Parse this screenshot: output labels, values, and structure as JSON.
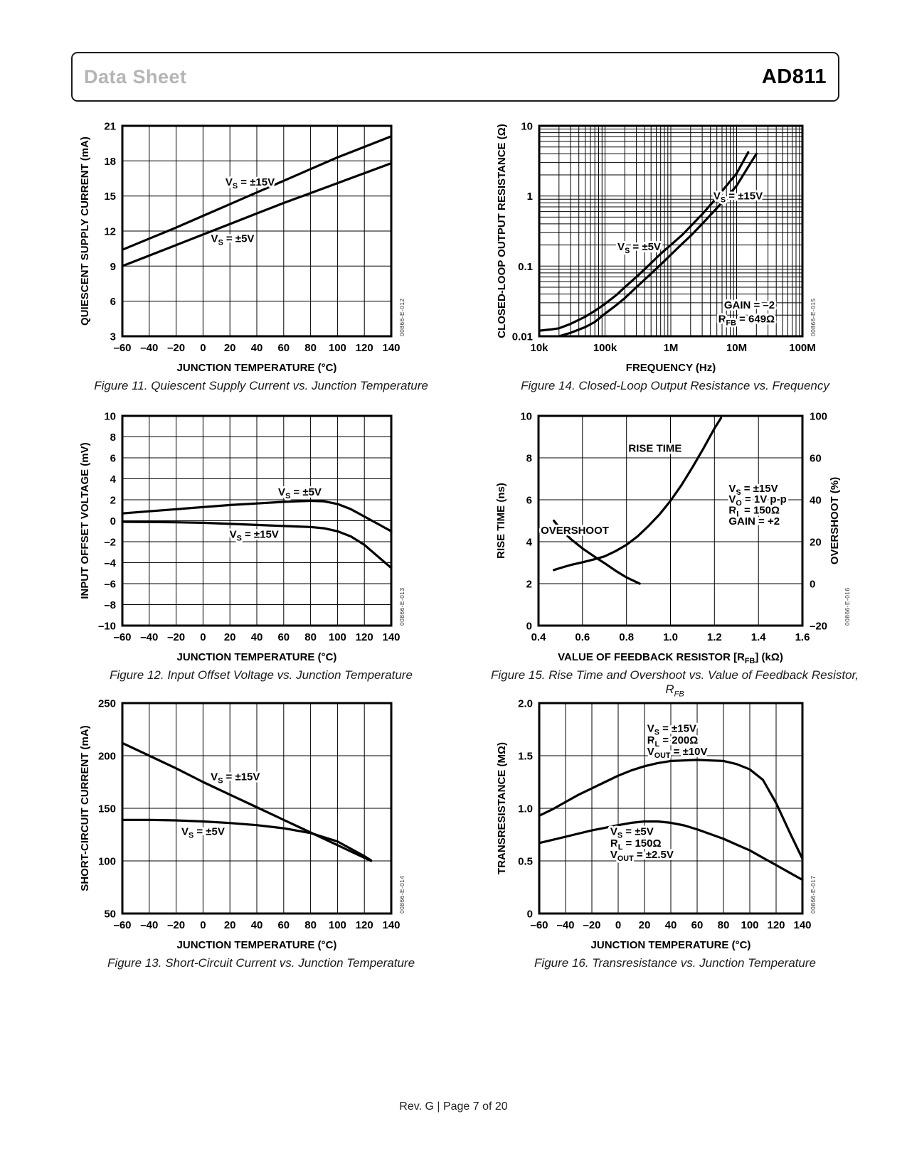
{
  "header": {
    "doc_type": "Data Sheet",
    "part_number": "AD811"
  },
  "footer": {
    "text": "Rev. G | Page 7 of 20"
  },
  "chart_data": [
    {
      "id": "figure-11",
      "type": "line",
      "caption": "Figure 11. Quiescent Supply Current vs. Junction Temperature",
      "code": "00866-E-012",
      "xlabel": "JUNCTION TEMPERATURE (°C)",
      "ylabel": "QUIESCENT SUPPLY CURRENT (mA)",
      "xscale": "linear",
      "yscale": "linear",
      "xlim": [
        -60,
        140
      ],
      "ylim": [
        3,
        21
      ],
      "xticks": [
        -60,
        -40,
        -20,
        0,
        20,
        40,
        60,
        80,
        100,
        120,
        140
      ],
      "xtick_labels": [
        "–60",
        "–40",
        "–20",
        "0",
        "20",
        "40",
        "60",
        "80",
        "100",
        "120",
        "140"
      ],
      "yticks": [
        3,
        6,
        9,
        12,
        15,
        18,
        21
      ],
      "ytick_labels": [
        "3",
        "6",
        "9",
        "12",
        "15",
        "18",
        "21"
      ],
      "series": [
        {
          "name": "VS = ±15V",
          "x": [
            -60,
            -40,
            -20,
            0,
            20,
            40,
            60,
            80,
            100,
            120,
            140
          ],
          "y": [
            10.4,
            11.35,
            12.3,
            13.3,
            14.3,
            15.3,
            16.3,
            17.3,
            18.3,
            19.2,
            20.1
          ]
        },
        {
          "name": "VS = ±5V",
          "x": [
            -60,
            -40,
            -20,
            0,
            20,
            40,
            60,
            80,
            100,
            120,
            140
          ],
          "y": [
            9.0,
            9.9,
            10.8,
            11.7,
            12.6,
            13.5,
            14.4,
            15.25,
            16.1,
            16.95,
            17.8
          ]
        }
      ],
      "annotations": [
        {
          "text": "V~S~ = ±15V",
          "x": 35,
          "y": 16.2,
          "anchor": "middle"
        },
        {
          "text": "V~S~ = ±5V",
          "x": 22,
          "y": 11.35,
          "anchor": "middle"
        }
      ]
    },
    {
      "id": "figure-14",
      "type": "line",
      "caption": "Figure 14. Closed-Loop Output Resistance vs. Frequency",
      "code": "00866-E-015",
      "xlabel": "FREQUENCY (Hz)",
      "ylabel": "CLOSED-LOOP OUTPUT RESISTANCE (Ω)",
      "xscale": "log",
      "yscale": "log",
      "xlim": [
        10000,
        100000000
      ],
      "ylim": [
        0.01,
        10
      ],
      "xticks": [
        10000,
        100000,
        1000000,
        10000000,
        100000000
      ],
      "xtick_labels": [
        "10k",
        "100k",
        "1M",
        "10M",
        "100M"
      ],
      "yticks": [
        0.01,
        0.1,
        1,
        10
      ],
      "ytick_labels": [
        "0.01",
        "0.1",
        "1",
        "10"
      ],
      "series": [
        {
          "name": "VS = ±5V",
          "x": [
            10000,
            15000,
            20000,
            30000,
            50000,
            70000,
            100000,
            150000,
            200000,
            300000,
            500000,
            700000,
            1000000,
            1500000,
            2000000,
            3000000,
            5000000,
            7000000,
            10000000,
            15000000
          ],
          "y": [
            0.012,
            0.0125,
            0.013,
            0.015,
            0.019,
            0.023,
            0.029,
            0.039,
            0.05,
            0.07,
            0.11,
            0.15,
            0.2,
            0.28,
            0.37,
            0.55,
            0.95,
            1.4,
            2.1,
            4.2
          ]
        },
        {
          "name": "VS = ±15V",
          "x": [
            20000,
            30000,
            50000,
            70000,
            100000,
            150000,
            200000,
            300000,
            500000,
            700000,
            1000000,
            1500000,
            2000000,
            3000000,
            5000000,
            7000000,
            10000000,
            15000000,
            20000000
          ],
          "y": [
            0.01,
            0.0112,
            0.0135,
            0.016,
            0.021,
            0.028,
            0.035,
            0.05,
            0.078,
            0.105,
            0.145,
            0.21,
            0.27,
            0.4,
            0.67,
            0.95,
            1.4,
            2.6,
            4.0
          ]
        }
      ],
      "annotations": [
        {
          "text": "V~S~ = ±15V",
          "x": 10500000,
          "y": 1.0,
          "anchor": "middle"
        },
        {
          "text": "V~S~ = ±5V",
          "x": 330000,
          "y": 0.19,
          "anchor": "middle"
        },
        {
          "text": "GAIN = –2",
          "x": 38000000,
          "y": 0.028,
          "anchor": "end"
        },
        {
          "text": "R~FB~ = 649Ω",
          "x": 38000000,
          "y": 0.0178,
          "anchor": "end"
        }
      ]
    },
    {
      "id": "figure-12",
      "type": "line",
      "caption": "Figure 12. Input Offset Voltage vs. Junction Temperature",
      "code": "00866-E-013",
      "xlabel": "JUNCTION TEMPERATURE (°C)",
      "ylabel": "INPUT OFFSET VOLTAGE (mV)",
      "xscale": "linear",
      "yscale": "linear",
      "xlim": [
        -60,
        140
      ],
      "ylim": [
        -10,
        10
      ],
      "xticks": [
        -60,
        -40,
        -20,
        0,
        20,
        40,
        60,
        80,
        100,
        120,
        140
      ],
      "xtick_labels": [
        "–60",
        "–40",
        "–20",
        "0",
        "20",
        "40",
        "60",
        "80",
        "100",
        "120",
        "140"
      ],
      "yticks": [
        -10,
        -8,
        -6,
        -4,
        -2,
        0,
        2,
        4,
        6,
        8,
        10
      ],
      "ytick_labels": [
        "–10",
        "–8",
        "–6",
        "–4",
        "–2",
        "0",
        "2",
        "4",
        "6",
        "8",
        "10"
      ],
      "series": [
        {
          "name": "VS = ±5V",
          "x": [
            -60,
            -40,
            -20,
            0,
            20,
            40,
            60,
            70,
            80,
            90,
            100,
            110,
            120,
            130,
            140
          ],
          "y": [
            0.7,
            0.9,
            1.1,
            1.3,
            1.5,
            1.65,
            1.8,
            1.85,
            1.9,
            1.85,
            1.6,
            1.1,
            0.4,
            -0.3,
            -1.0
          ]
        },
        {
          "name": "VS = ±15V",
          "x": [
            -60,
            -40,
            -20,
            0,
            20,
            40,
            60,
            70,
            80,
            90,
            100,
            110,
            120,
            130,
            140
          ],
          "y": [
            -0.1,
            -0.12,
            -0.15,
            -0.2,
            -0.3,
            -0.4,
            -0.5,
            -0.55,
            -0.6,
            -0.72,
            -1.0,
            -1.5,
            -2.3,
            -3.4,
            -4.5
          ]
        }
      ],
      "annotations": [
        {
          "text": "V~S~ = ±5V",
          "x": 72,
          "y": 2.75,
          "anchor": "middle"
        },
        {
          "text": "V~S~ = ±15V",
          "x": 38,
          "y": -1.3,
          "anchor": "middle"
        }
      ]
    },
    {
      "id": "figure-15",
      "type": "line",
      "caption": "Figure 15. Rise Time and Overshoot vs. Value of Feedback Resistor, R~FB~",
      "code": "00866-E-016",
      "xlabel": "VALUE OF FEEDBACK RESISTOR [R~FB~] (kΩ)",
      "ylabel": "RISE TIME (ns)",
      "y2label": "OVERSHOOT (%)",
      "xscale": "linear",
      "yscale": "linear",
      "xlim": [
        0.4,
        1.6
      ],
      "ylim": [
        0,
        10
      ],
      "xticks": [
        0.4,
        0.6,
        0.8,
        1.0,
        1.2,
        1.4,
        1.6
      ],
      "xtick_labels": [
        "0.4",
        "0.6",
        "0.8",
        "1.0",
        "1.2",
        "1.4",
        "1.6"
      ],
      "yticks": [
        0,
        2,
        4,
        6,
        8,
        10
      ],
      "ytick_labels": [
        "0",
        "2",
        "4",
        "6",
        "8",
        "10"
      ],
      "y2tick_labels": [
        "–20",
        "0",
        "20",
        "40",
        "60",
        "100"
      ],
      "series": [
        {
          "name": "RISE TIME",
          "x": [
            0.47,
            0.5,
            0.55,
            0.6,
            0.65,
            0.7,
            0.75,
            0.8,
            0.85,
            0.9,
            0.95,
            1.0,
            1.05,
            1.1,
            1.15,
            1.2,
            1.23
          ],
          "y": [
            2.65,
            2.75,
            2.9,
            3.02,
            3.15,
            3.3,
            3.55,
            3.85,
            4.25,
            4.75,
            5.3,
            5.95,
            6.7,
            7.55,
            8.45,
            9.4,
            9.9
          ]
        },
        {
          "name": "OVERSHOOT",
          "x": [
            0.47,
            0.5,
            0.55,
            0.6,
            0.65,
            0.7,
            0.75,
            0.8,
            0.86
          ],
          "y": [
            5.0,
            4.6,
            4.1,
            3.68,
            3.32,
            2.98,
            2.62,
            2.3,
            2.0
          ],
          "y_overshoot_percent": [
            30,
            26,
            21,
            16.8,
            13.2,
            9.8,
            6.2,
            3,
            0
          ]
        }
      ],
      "annotations": [
        {
          "text": "RISE TIME",
          "x": 0.93,
          "y": 8.45,
          "anchor": "middle"
        },
        {
          "text": "OVERSHOOT",
          "x": 0.565,
          "y": 4.55,
          "anchor": "middle"
        },
        {
          "text": "V~S~ = ±15V",
          "x": 1.265,
          "y": 6.55,
          "anchor": "start"
        },
        {
          "text": "V~O~ = 1V p-p",
          "x": 1.265,
          "y": 6.03,
          "anchor": "start"
        },
        {
          "text": "R~L~ = 150Ω",
          "x": 1.265,
          "y": 5.51,
          "anchor": "start"
        },
        {
          "text": "GAIN = +2",
          "x": 1.265,
          "y": 4.99,
          "anchor": "start"
        }
      ]
    },
    {
      "id": "figure-13",
      "type": "line",
      "caption": "Figure 13. Short-Circuit Current vs. Junction Temperature",
      "code": "00866-E-014",
      "xlabel": "JUNCTION TEMPERATURE (°C)",
      "ylabel": "SHORT-CIRCUIT CURRENT (mA)",
      "xscale": "linear",
      "yscale": "linear",
      "xlim": [
        -60,
        140
      ],
      "ylim": [
        50,
        250
      ],
      "xticks": [
        -60,
        -40,
        -20,
        0,
        20,
        40,
        60,
        80,
        100,
        120,
        140
      ],
      "xtick_labels": [
        "–60",
        "–40",
        "–20",
        "0",
        "20",
        "40",
        "60",
        "80",
        "100",
        "120",
        "140"
      ],
      "yticks": [
        50,
        100,
        150,
        200,
        250
      ],
      "ytick_labels": [
        "50",
        "100",
        "150",
        "200",
        "250"
      ],
      "series": [
        {
          "name": "VS = ±15V",
          "x": [
            -60,
            -40,
            -20,
            0,
            20,
            40,
            60,
            80,
            100,
            120,
            125
          ],
          "y": [
            212,
            200,
            188,
            175,
            163,
            151,
            139,
            127,
            115,
            103,
            100
          ]
        },
        {
          "name": "VS = ±5V",
          "x": [
            -60,
            -40,
            -20,
            0,
            20,
            40,
            60,
            80,
            100,
            120,
            125
          ],
          "y": [
            139,
            139,
            138.5,
            137.5,
            136,
            134,
            131,
            126.5,
            118.5,
            104.5,
            100.5
          ]
        }
      ],
      "annotations": [
        {
          "text": "V~S~ = ±15V",
          "x": 24,
          "y": 180,
          "anchor": "middle"
        },
        {
          "text": "V~S~ = ±5V",
          "x": 0,
          "y": 128,
          "anchor": "middle"
        }
      ]
    },
    {
      "id": "figure-16",
      "type": "line",
      "caption": "Figure 16. Transresistance vs. Junction Temperature",
      "code": "00866-E-017",
      "xlabel": "JUNCTION TEMPERATURE (°C)",
      "ylabel": "TRANSRESISTANCE (MΩ)",
      "xscale": "linear",
      "yscale": "linear",
      "xlim": [
        -60,
        140
      ],
      "ylim": [
        0,
        2.0
      ],
      "xticks": [
        -60,
        -40,
        -20,
        0,
        20,
        40,
        60,
        80,
        100,
        120,
        140
      ],
      "xtick_labels": [
        "–60",
        "–40",
        "–20",
        "0",
        "20",
        "40",
        "60",
        "80",
        "100",
        "120",
        "140"
      ],
      "yticks": [
        0,
        0.5,
        1.0,
        1.5,
        2.0
      ],
      "ytick_labels": [
        "0",
        "0.5",
        "1.0",
        "1.5",
        "2.0"
      ],
      "series": [
        {
          "name": "VS = ±15V",
          "x": [
            -60,
            -50,
            -40,
            -30,
            -20,
            -10,
            0,
            10,
            20,
            30,
            40,
            50,
            60,
            70,
            80,
            90,
            100,
            110,
            120,
            130,
            140
          ],
          "y": [
            0.93,
            0.99,
            1.06,
            1.13,
            1.19,
            1.25,
            1.31,
            1.36,
            1.4,
            1.43,
            1.45,
            1.455,
            1.46,
            1.455,
            1.45,
            1.42,
            1.37,
            1.27,
            1.05,
            0.78,
            0.52
          ]
        },
        {
          "name": "VS = ±5V",
          "x": [
            -60,
            -50,
            -40,
            -30,
            -20,
            -10,
            0,
            10,
            20,
            30,
            40,
            50,
            60,
            70,
            80,
            90,
            100,
            110,
            120,
            130,
            140
          ],
          "y": [
            0.67,
            0.7,
            0.73,
            0.76,
            0.79,
            0.815,
            0.84,
            0.862,
            0.875,
            0.875,
            0.862,
            0.838,
            0.8,
            0.755,
            0.71,
            0.655,
            0.6,
            0.53,
            0.46,
            0.39,
            0.32
          ]
        }
      ],
      "annotations": [
        {
          "text": "V~S~ = ±15V",
          "x": 22,
          "y": 1.76,
          "anchor": "start"
        },
        {
          "text": "R~L~ = 200Ω",
          "x": 22,
          "y": 1.65,
          "anchor": "start"
        },
        {
          "text": "V~OUT~ = ±10V",
          "x": 22,
          "y": 1.54,
          "anchor": "start"
        },
        {
          "text": "V~S~ = ±5V",
          "x": -6,
          "y": 0.78,
          "anchor": "start"
        },
        {
          "text": "R~L~ = 150Ω",
          "x": -6,
          "y": 0.67,
          "anchor": "start"
        },
        {
          "text": "V~OUT~ = ±2.5V",
          "x": -6,
          "y": 0.56,
          "anchor": "start"
        }
      ]
    }
  ]
}
